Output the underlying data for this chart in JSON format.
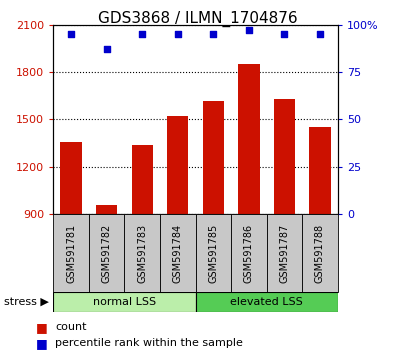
{
  "title": "GDS3868 / ILMN_1704876",
  "categories": [
    "GSM591781",
    "GSM591782",
    "GSM591783",
    "GSM591784",
    "GSM591785",
    "GSM591786",
    "GSM591787",
    "GSM591788"
  ],
  "counts": [
    1360,
    960,
    1340,
    1520,
    1620,
    1850,
    1630,
    1450
  ],
  "percentiles": [
    95,
    87,
    95,
    95,
    95,
    97,
    95,
    95
  ],
  "ylim": [
    900,
    2100
  ],
  "yticks": [
    900,
    1200,
    1500,
    1800,
    2100
  ],
  "right_ylim": [
    0,
    100
  ],
  "right_yticks": [
    0,
    25,
    50,
    75,
    100
  ],
  "right_yticklabels": [
    "0",
    "25",
    "50",
    "75",
    "100%"
  ],
  "bar_color": "#CC1100",
  "dot_color": "#0000CC",
  "group1_label": "normal LSS",
  "group2_label": "elevated LSS",
  "stress_label": "stress",
  "legend_count": "count",
  "legend_pct": "percentile rank within the sample",
  "title_fontsize": 11,
  "tick_fontsize": 8,
  "label_fontsize": 7,
  "group_fontsize": 8,
  "legend_fontsize": 8,
  "group_bg_light": "#BBEEAA",
  "group_bg_dark": "#55CC55",
  "xticklabel_bg": "#C8C8C8",
  "bar_width": 0.6
}
